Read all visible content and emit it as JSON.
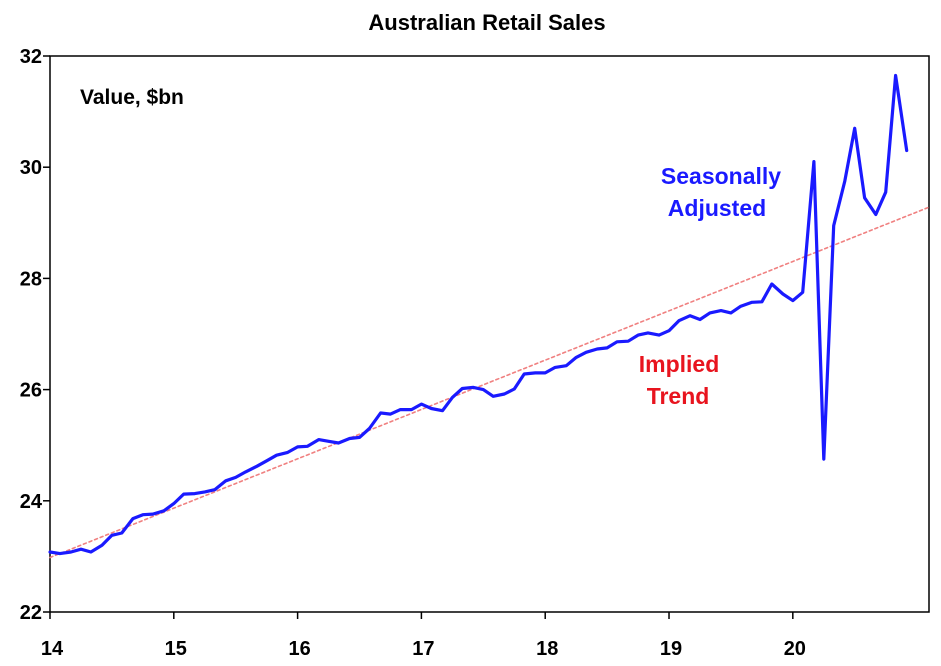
{
  "chart_data": {
    "type": "line",
    "title": "Australian Retail Sales",
    "ylabel": "Value, $bn",
    "xlabel": "",
    "ylim": [
      22,
      32
    ],
    "yticks": [
      22,
      24,
      26,
      28,
      30,
      32
    ],
    "xlim": [
      14,
      21.1
    ],
    "xticks": [
      {
        "value": 14,
        "label": "14"
      },
      {
        "value": 15,
        "label": "15"
      },
      {
        "value": 16,
        "label": "16"
      },
      {
        "value": 17,
        "label": "17"
      },
      {
        "value": 18,
        "label": "18"
      },
      {
        "value": 19,
        "label": "19"
      },
      {
        "value": 20,
        "label": "20"
      }
    ],
    "grid": false,
    "colors": {
      "seasonally_adjusted": "#1a1aff",
      "implied_trend": "#f08080",
      "trend_label": "#e8141e"
    },
    "series": [
      {
        "name": "Seasonally Adjusted",
        "color": "#1a1aff",
        "points": [
          [
            14.0,
            23.08
          ],
          [
            14.08,
            23.05
          ],
          [
            14.17,
            23.08
          ],
          [
            14.25,
            23.13
          ],
          [
            14.33,
            23.08
          ],
          [
            14.42,
            23.2
          ],
          [
            14.5,
            23.38
          ],
          [
            14.58,
            23.42
          ],
          [
            14.67,
            23.68
          ],
          [
            14.75,
            23.75
          ],
          [
            14.83,
            23.76
          ],
          [
            14.92,
            23.82
          ],
          [
            15.0,
            23.95
          ],
          [
            15.08,
            24.12
          ],
          [
            15.17,
            24.13
          ],
          [
            15.25,
            24.16
          ],
          [
            15.33,
            24.2
          ],
          [
            15.42,
            24.36
          ],
          [
            15.5,
            24.42
          ],
          [
            15.58,
            24.52
          ],
          [
            15.67,
            24.62
          ],
          [
            15.75,
            24.72
          ],
          [
            15.83,
            24.82
          ],
          [
            15.92,
            24.87
          ],
          [
            16.0,
            24.97
          ],
          [
            16.08,
            24.98
          ],
          [
            16.17,
            25.1
          ],
          [
            16.25,
            25.07
          ],
          [
            16.33,
            25.04
          ],
          [
            16.42,
            25.12
          ],
          [
            16.5,
            25.14
          ],
          [
            16.58,
            25.3
          ],
          [
            16.67,
            25.58
          ],
          [
            16.75,
            25.56
          ],
          [
            16.83,
            25.64
          ],
          [
            16.92,
            25.64
          ],
          [
            17.0,
            25.74
          ],
          [
            17.08,
            25.66
          ],
          [
            17.17,
            25.62
          ],
          [
            17.25,
            25.86
          ],
          [
            17.33,
            26.02
          ],
          [
            17.42,
            26.04
          ],
          [
            17.5,
            26.0
          ],
          [
            17.58,
            25.88
          ],
          [
            17.67,
            25.92
          ],
          [
            17.75,
            26.01
          ],
          [
            17.83,
            26.28
          ],
          [
            17.92,
            26.3
          ],
          [
            18.0,
            26.3
          ],
          [
            18.08,
            26.4
          ],
          [
            18.17,
            26.43
          ],
          [
            18.25,
            26.58
          ],
          [
            18.33,
            26.67
          ],
          [
            18.42,
            26.73
          ],
          [
            18.5,
            26.75
          ],
          [
            18.58,
            26.86
          ],
          [
            18.67,
            26.87
          ],
          [
            18.75,
            26.98
          ],
          [
            18.83,
            27.02
          ],
          [
            18.92,
            26.98
          ],
          [
            19.0,
            27.06
          ],
          [
            19.08,
            27.24
          ],
          [
            19.17,
            27.33
          ],
          [
            19.25,
            27.26
          ],
          [
            19.33,
            27.38
          ],
          [
            19.42,
            27.42
          ],
          [
            19.5,
            27.38
          ],
          [
            19.58,
            27.5
          ],
          [
            19.67,
            27.57
          ],
          [
            19.75,
            27.58
          ],
          [
            19.83,
            27.9
          ],
          [
            19.92,
            27.72
          ],
          [
            20.0,
            27.6
          ],
          [
            20.08,
            27.75
          ],
          [
            20.17,
            30.1
          ],
          [
            20.25,
            24.75
          ],
          [
            20.33,
            28.95
          ],
          [
            20.42,
            29.75
          ],
          [
            20.5,
            30.7
          ],
          [
            20.58,
            29.45
          ],
          [
            20.67,
            29.15
          ],
          [
            20.75,
            29.55
          ],
          [
            20.83,
            31.65
          ],
          [
            20.92,
            30.3
          ]
        ]
      },
      {
        "name": "Implied Trend",
        "color": "#f08080",
        "dashed": true,
        "points": [
          [
            14.0,
            22.98
          ],
          [
            21.1,
            29.28
          ]
        ]
      }
    ],
    "annotations": [
      {
        "lines": [
          "Seasonally",
          "Adjusted"
        ],
        "color": "#1a1aff"
      },
      {
        "lines": [
          "Implied",
          "Trend"
        ],
        "color": "#e8141e"
      }
    ]
  }
}
